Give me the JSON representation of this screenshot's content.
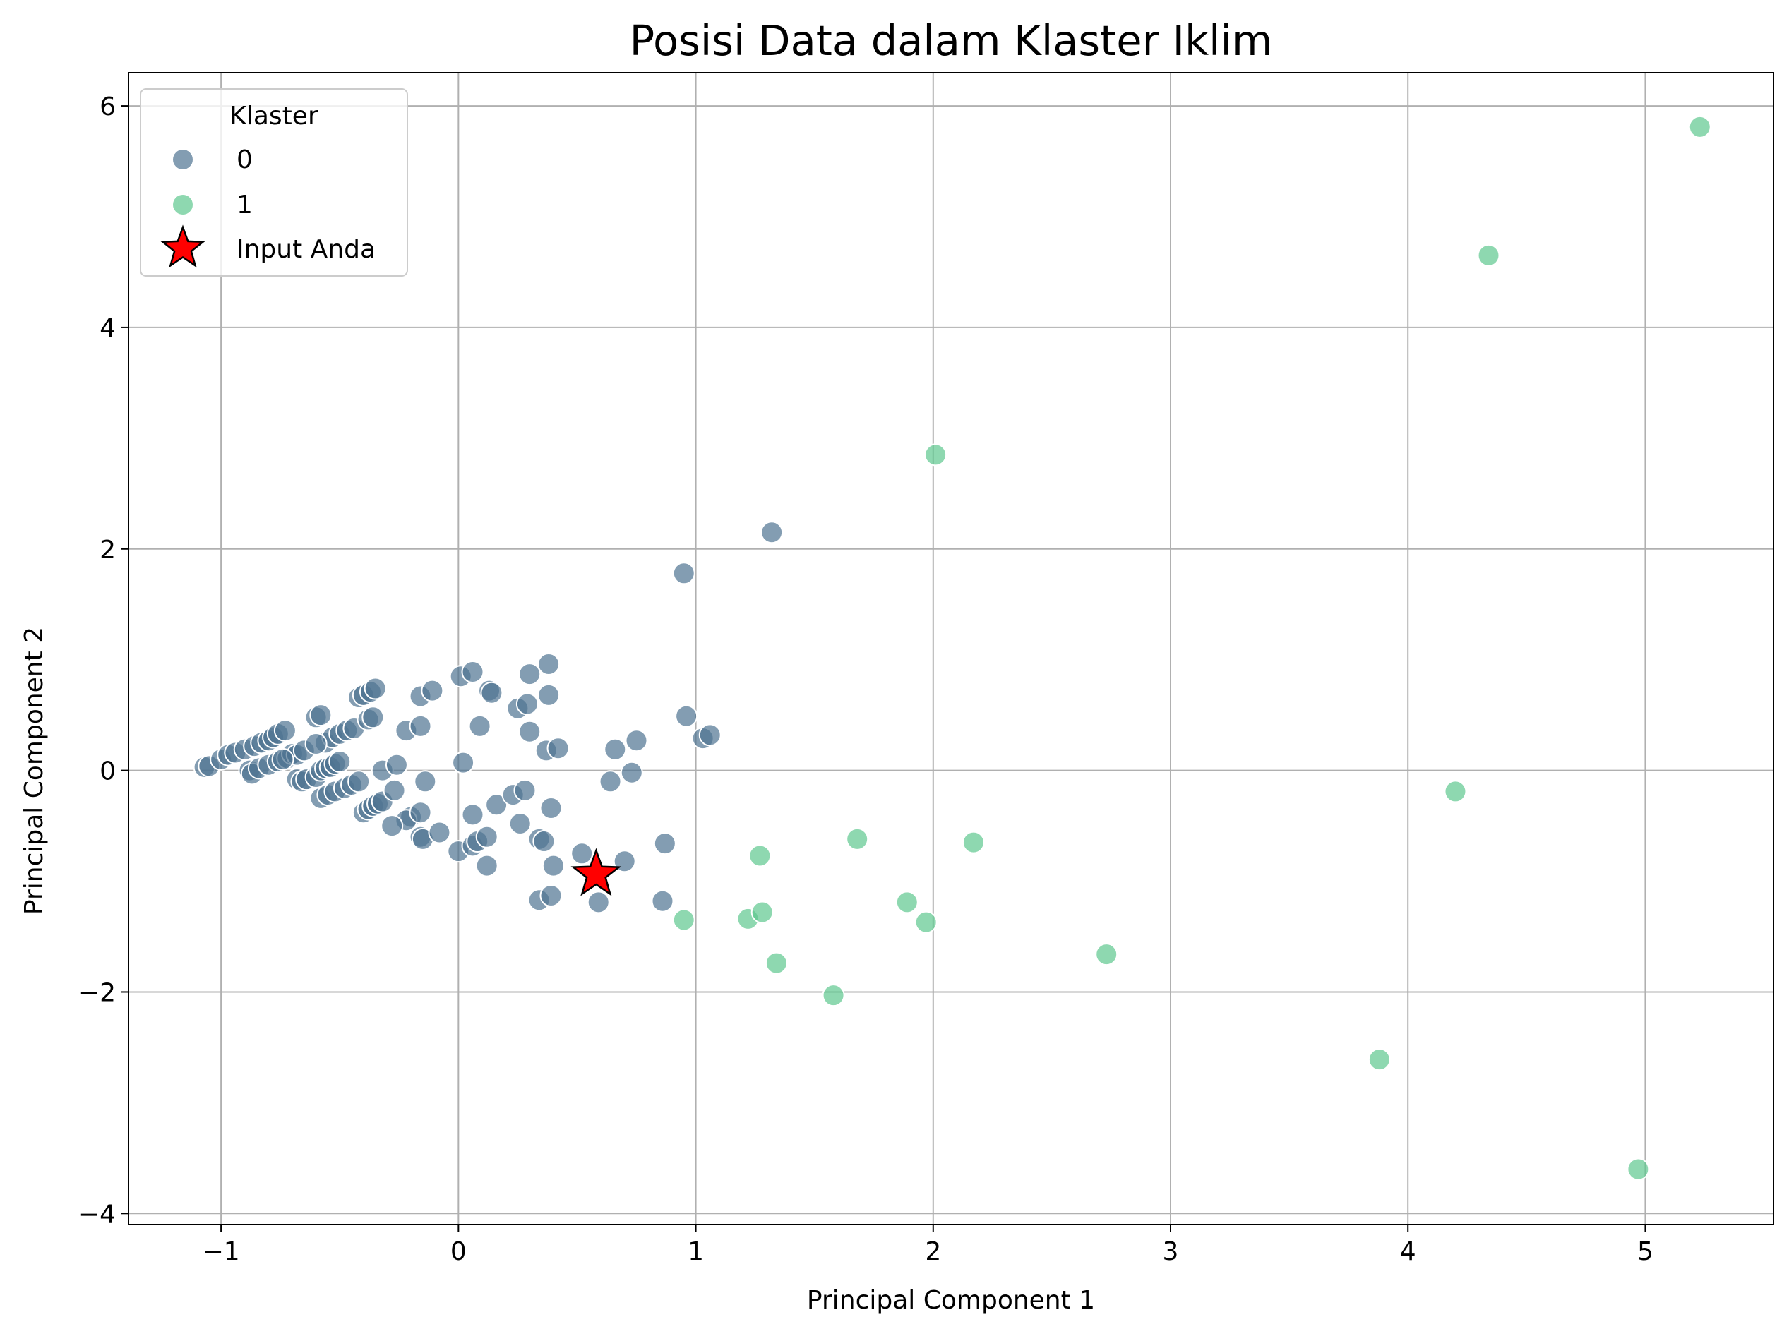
{
  "chart_data": {
    "type": "scatter",
    "title": "Posisi Data dalam Klaster Iklim",
    "xlabel": "Principal Component 1",
    "ylabel": "Principal Component 2",
    "xlim": [
      -1.39,
      5.54
    ],
    "ylim": [
      -4.1,
      6.3
    ],
    "xticks": [
      -1,
      0,
      1,
      2,
      3,
      4,
      5
    ],
    "xtick_labels": [
      "−1",
      "0",
      "1",
      "2",
      "3",
      "4",
      "5"
    ],
    "yticks": [
      -4,
      -2,
      0,
      2,
      4,
      6
    ],
    "ytick_labels": [
      "−4",
      "−2",
      "0",
      "2",
      "4",
      "6"
    ],
    "grid": true,
    "legend": {
      "title": "Klaster",
      "placement": "top-left"
    },
    "series": [
      {
        "name": "0",
        "color": "#4f7391",
        "points": [
          [
            -1.07,
            0.03
          ],
          [
            -1.05,
            0.04
          ],
          [
            -1.0,
            0.1
          ],
          [
            -0.97,
            0.14
          ],
          [
            -0.94,
            0.16
          ],
          [
            -0.9,
            0.19
          ],
          [
            -0.86,
            0.22
          ],
          [
            -0.83,
            0.25
          ],
          [
            -0.8,
            0.27
          ],
          [
            -0.78,
            0.3
          ],
          [
            -0.76,
            0.33
          ],
          [
            -0.73,
            0.36
          ],
          [
            -0.88,
            0.0
          ],
          [
            -0.87,
            -0.03
          ],
          [
            -0.84,
            0.02
          ],
          [
            -0.8,
            0.05
          ],
          [
            -0.76,
            0.08
          ],
          [
            -0.72,
            0.11
          ],
          [
            -0.7,
            0.15
          ],
          [
            -0.68,
            0.14
          ],
          [
            -0.74,
            0.1
          ],
          [
            -0.65,
            0.18
          ],
          [
            -0.68,
            -0.08
          ],
          [
            -0.66,
            -0.1
          ],
          [
            -0.64,
            -0.08
          ],
          [
            -0.6,
            -0.06
          ],
          [
            -0.58,
            0.0
          ],
          [
            -0.56,
            0.02
          ],
          [
            -0.54,
            0.03
          ],
          [
            -0.52,
            0.06
          ],
          [
            -0.5,
            0.08
          ],
          [
            -0.58,
            -0.25
          ],
          [
            -0.55,
            -0.22
          ],
          [
            -0.52,
            -0.19
          ],
          [
            -0.48,
            -0.16
          ],
          [
            -0.45,
            -0.13
          ],
          [
            -0.42,
            -0.1
          ],
          [
            -0.4,
            -0.38
          ],
          [
            -0.38,
            -0.35
          ],
          [
            -0.36,
            -0.32
          ],
          [
            -0.34,
            -0.3
          ],
          [
            -0.32,
            -0.28
          ],
          [
            -0.6,
            0.48
          ],
          [
            -0.58,
            0.5
          ],
          [
            -0.56,
            0.25
          ],
          [
            -0.53,
            0.3
          ],
          [
            -0.5,
            0.33
          ],
          [
            -0.47,
            0.36
          ],
          [
            -0.44,
            0.38
          ],
          [
            -0.42,
            0.66
          ],
          [
            -0.4,
            0.68
          ],
          [
            -0.37,
            0.71
          ],
          [
            -0.35,
            0.74
          ],
          [
            -0.38,
            0.46
          ],
          [
            -0.36,
            0.48
          ],
          [
            -0.6,
            0.24
          ],
          [
            -0.32,
            0.0
          ],
          [
            -0.26,
            0.05
          ],
          [
            -0.27,
            -0.18
          ],
          [
            -0.2,
            -0.42
          ],
          [
            -0.22,
            -0.45
          ],
          [
            -0.28,
            -0.5
          ],
          [
            -0.16,
            -0.38
          ],
          [
            -0.16,
            -0.6
          ],
          [
            -0.15,
            -0.62
          ],
          [
            -0.14,
            -0.1
          ],
          [
            -0.08,
            -0.56
          ],
          [
            -0.22,
            0.36
          ],
          [
            -0.16,
            0.4
          ],
          [
            -0.16,
            0.67
          ],
          [
            -0.11,
            0.72
          ],
          [
            0.01,
            0.85
          ],
          [
            0.06,
            0.89
          ],
          [
            0.13,
            0.72
          ],
          [
            0.14,
            0.7
          ],
          [
            0.09,
            0.4
          ],
          [
            0.02,
            0.07
          ],
          [
            0.06,
            -0.4
          ],
          [
            0.0,
            -0.73
          ],
          [
            0.06,
            -0.68
          ],
          [
            0.08,
            -0.64
          ],
          [
            0.12,
            -0.6
          ],
          [
            0.12,
            -0.86
          ],
          [
            0.16,
            -0.31
          ],
          [
            0.23,
            -0.22
          ],
          [
            0.26,
            -0.48
          ],
          [
            0.28,
            -0.18
          ],
          [
            0.25,
            0.56
          ],
          [
            0.29,
            0.6
          ],
          [
            0.3,
            0.87
          ],
          [
            0.3,
            0.35
          ],
          [
            0.37,
            0.18
          ],
          [
            0.38,
            0.96
          ],
          [
            0.38,
            0.68
          ],
          [
            0.42,
            0.2
          ],
          [
            0.34,
            -0.62
          ],
          [
            0.36,
            -0.64
          ],
          [
            0.39,
            -0.34
          ],
          [
            0.4,
            -0.86
          ],
          [
            0.34,
            -1.17
          ],
          [
            0.39,
            -1.13
          ],
          [
            0.52,
            -0.75
          ],
          [
            0.59,
            -1.19
          ],
          [
            0.64,
            -0.1
          ],
          [
            0.66,
            0.19
          ],
          [
            0.7,
            -0.82
          ],
          [
            0.73,
            -0.02
          ],
          [
            0.75,
            0.27
          ],
          [
            0.87,
            -0.66
          ],
          [
            0.86,
            -1.18
          ],
          [
            0.95,
            1.78
          ],
          [
            0.96,
            0.49
          ],
          [
            1.03,
            0.29
          ],
          [
            1.06,
            0.32
          ],
          [
            1.32,
            2.15
          ]
        ]
      },
      {
        "name": "1",
        "color": "#5ec88f",
        "points": [
          [
            0.95,
            -1.35
          ],
          [
            1.22,
            -1.34
          ],
          [
            1.27,
            -0.77
          ],
          [
            1.28,
            -1.28
          ],
          [
            1.34,
            -1.74
          ],
          [
            1.58,
            -2.03
          ],
          [
            1.68,
            -0.62
          ],
          [
            1.89,
            -1.19
          ],
          [
            1.97,
            -1.37
          ],
          [
            2.01,
            2.85
          ],
          [
            2.17,
            -0.65
          ],
          [
            2.73,
            -1.66
          ],
          [
            3.88,
            -2.61
          ],
          [
            4.2,
            -0.19
          ],
          [
            4.34,
            4.65
          ],
          [
            4.97,
            -3.6
          ],
          [
            5.23,
            5.81
          ]
        ]
      }
    ],
    "highlight": {
      "name": "Input Anda",
      "x": 0.58,
      "y": -0.94,
      "color": "#ff0000",
      "edge_color": "#000000",
      "marker": "star"
    }
  }
}
